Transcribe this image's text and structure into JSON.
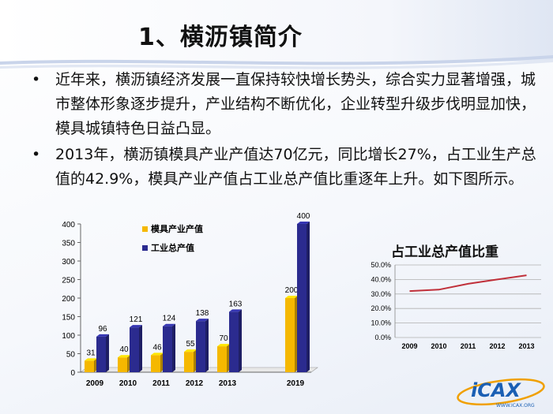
{
  "slide": {
    "title": "1、横沥镇简介",
    "bullets": [
      "近年来，横沥镇经济发展一直保持较快增长势头，综合实力显著增强，城市整体形象逐步提升，产业结构不断优化，企业转型升级步伐明显加快，模具城镇特色日益凸显。",
      "2013年，横沥镇模具产业产值达70亿元，同比增长27%，占工业生产总值的42.9%，模具产业产值占工业总产值比重逐年上升。如下图所示。"
    ],
    "bullet_symbol": "•",
    "logo_text": "iCAX",
    "logo_url_text": "WWW.ICAX.ORG"
  },
  "chart_data": [
    {
      "type": "bar",
      "categories": [
        "2009",
        "2010",
        "2011",
        "2012",
        "2013",
        "2019"
      ],
      "series": [
        {
          "name": "模具产业产值",
          "values": [
            31,
            40,
            46,
            55,
            70,
            200
          ],
          "color": "#f5b800"
        },
        {
          "name": "工业总产值",
          "values": [
            96,
            121,
            124,
            138,
            163,
            400
          ],
          "color": "#2b2b8f"
        }
      ],
      "ylim": [
        0,
        400
      ],
      "yticks": [
        0,
        50,
        100,
        150,
        200,
        250,
        300,
        350,
        400
      ],
      "legend": "top-left",
      "grid": false,
      "style": "3d"
    },
    {
      "type": "line",
      "title": "占工业总产值比重",
      "x": [
        "2009",
        "2010",
        "2011",
        "2012",
        "2013"
      ],
      "series": [
        {
          "name": "",
          "values": [
            0.32,
            0.33,
            0.37,
            0.4,
            0.429
          ],
          "color": "#c0303a"
        }
      ],
      "ylim": [
        0,
        0.5
      ],
      "yticks": [
        "0.0%",
        "10.0%",
        "20.0%",
        "30.0%",
        "40.0%",
        "50.0%"
      ],
      "grid": true
    }
  ]
}
